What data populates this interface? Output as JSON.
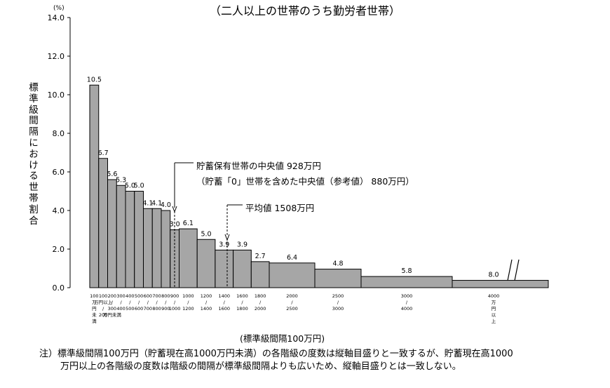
{
  "title": "（二人以上の世帯のうち勤労者世帯）",
  "note": {
    "line1": "注）標準級間隔100万円（貯蓄現在高1000万円未満）の各階級の度数は縦軸目盛りと一致するが、貯蓄現在高1000",
    "line2": "万円以上の各階級の度数は階級の間隔が標準級間隔よりも広いため、縦軸目盛りとは一致しない。"
  },
  "annotations": {
    "median": "貯蓄保有世帯の中央値 928万円",
    "median_ref": "（貯蓄「0」世帯を含めた中央値（参考値） 880万円）",
    "mean": "平均値 1508万円"
  },
  "chart_data": {
    "type": "bar",
    "title": "（二人以上の世帯のうち勤労者世帯）",
    "ylabel": "標準級間隔における世帯割合",
    "yunit": "(%)",
    "xlabel": "(標準級間隔100万円)",
    "ylim": [
      0,
      14
    ],
    "yticks": [
      "0.0",
      "2.0",
      "4.0",
      "6.0",
      "8.0",
      "10.0",
      "12.0",
      "14.0"
    ],
    "grid": false,
    "bins": [
      {
        "from": 0,
        "to": 100,
        "label": "100\n万\n円\n未\n満",
        "value": 10.5,
        "height": 10.5
      },
      {
        "from": 100,
        "to": 200,
        "label": "100\n万円以上\n/\n200",
        "value": 6.7,
        "height": 6.7
      },
      {
        "from": 200,
        "to": 300,
        "label": "200\n/\n300\n万円未満",
        "value": 5.6,
        "height": 5.6
      },
      {
        "from": 300,
        "to": 400,
        "label": "300\n/\n400",
        "value": 5.3,
        "height": 5.3
      },
      {
        "from": 400,
        "to": 500,
        "label": "400\n/\n500",
        "value": 5.0,
        "height": 5.0
      },
      {
        "from": 500,
        "to": 600,
        "label": "500\n/\n600",
        "value": 5.0,
        "height": 5.0
      },
      {
        "from": 600,
        "to": 700,
        "label": "600\n/\n700",
        "value": 4.1,
        "height": 4.1
      },
      {
        "from": 700,
        "to": 800,
        "label": "700\n/\n800",
        "value": 4.1,
        "height": 4.1
      },
      {
        "from": 800,
        "to": 900,
        "label": "800\n/\n900",
        "value": 4.0,
        "height": 4.0
      },
      {
        "from": 900,
        "to": 1000,
        "label": "900\n/\n1000",
        "value": 3.0,
        "height": 3.0
      },
      {
        "from": 1000,
        "to": 1200,
        "label": "1000\n/\n1200",
        "value": 6.1,
        "height": 3.05
      },
      {
        "from": 1200,
        "to": 1400,
        "label": "1200\n/\n1400",
        "value": 5.0,
        "height": 2.5
      },
      {
        "from": 1400,
        "to": 1600,
        "label": "1400\n/\n1600",
        "value": 3.9,
        "height": 1.95
      },
      {
        "from": 1600,
        "to": 1800,
        "label": "1600\n/\n1800",
        "value": 3.9,
        "height": 1.95
      },
      {
        "from": 1800,
        "to": 2000,
        "label": "1800\n/\n2000",
        "value": 2.7,
        "height": 1.35
      },
      {
        "from": 2000,
        "to": 2500,
        "label": "2000\n/\n2500",
        "value": 6.4,
        "height": 1.28
      },
      {
        "from": 2500,
        "to": 3000,
        "label": "2500\n/\n3000",
        "value": 4.8,
        "height": 0.96
      },
      {
        "from": 3000,
        "to": 4000,
        "label": "3000\n/\n4000",
        "value": 5.8,
        "height": 0.58
      },
      {
        "from": 4000,
        "to": null,
        "label": "4000\n万\n円\n以\n上",
        "value": 8.0,
        "height": 0.38
      }
    ],
    "median": 928,
    "mean": 1508
  }
}
